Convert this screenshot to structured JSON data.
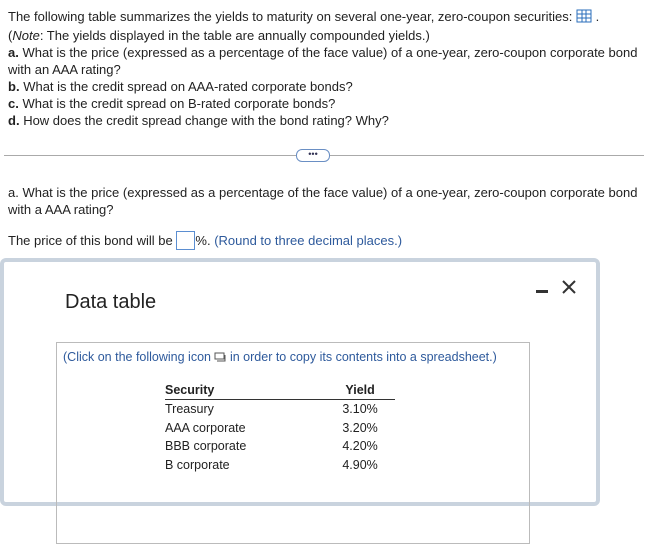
{
  "intro": {
    "text": "The following table summarizes the yields to maturity on several one-year, zero-coupon securities:",
    "end": "."
  },
  "note": {
    "open": "(",
    "label": "Note",
    "rest": ": The yields displayed in the table are annually compounded yields.)"
  },
  "questions": [
    {
      "letter": "a.",
      "text": "What is the price (expressed as a percentage of the face value) of a one-year, zero-coupon corporate bond with an AAA rating?"
    },
    {
      "letter": "b.",
      "text": "What is the credit spread on AAA-rated corporate bonds?"
    },
    {
      "letter": "c.",
      "text": "What is the credit spread on B-rated corporate bonds?"
    },
    {
      "letter": "d.",
      "text": "How does the credit spread change with the bond rating? Why?"
    }
  ],
  "part_a": {
    "question": "a. What is the price (expressed as a percentage of the face value) of a one-year, zero-coupon corporate bond with a AAA rating?",
    "answer_prefix": "The price of this bond will be",
    "answer_suffix": "%.",
    "hint": "(Round to three decimal places.)"
  },
  "dialog": {
    "title": "Data table",
    "instruction_start": "(Click on the following icon",
    "instruction_end": "in order to copy its contents into a spreadsheet.)",
    "table": {
      "headers": [
        "Security",
        "Yield"
      ],
      "rows": [
        [
          "Treasury",
          "3.10%"
        ],
        [
          "AAA corporate",
          "3.20%"
        ],
        [
          "BBB corporate",
          "4.20%"
        ],
        [
          "B corporate",
          "4.90%"
        ]
      ]
    }
  }
}
